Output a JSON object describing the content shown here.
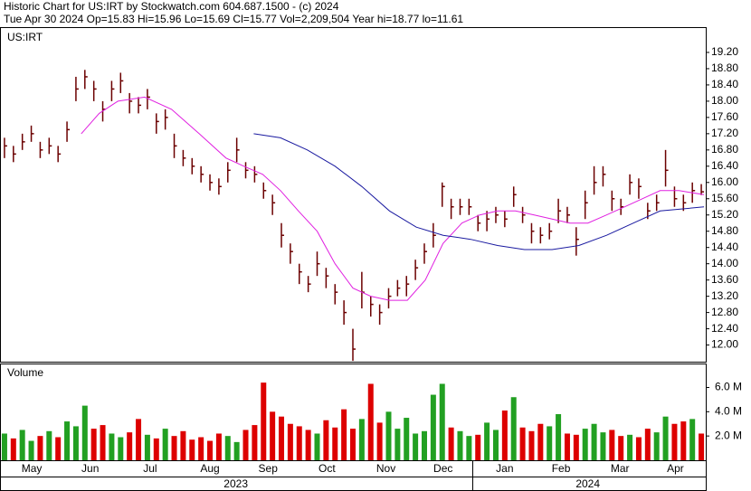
{
  "header": {
    "line1": "Historic Chart for US:IRT by Stockwatch.com 604.687.1500 - (c) 2024",
    "line2": "Tue Apr 30 2024   Op=15.83   Hi=15.96   Lo=15.69   Cl=15.77   Vol=2,209,504   Year hi=18.77   lo=11.61"
  },
  "chart_data": [
    {
      "type": "hlc",
      "label": "US:IRT",
      "color": "#6b0000",
      "high": [
        17.1,
        16.9,
        17.2,
        17.4,
        17.0,
        17.1,
        16.9,
        17.5,
        18.6,
        18.77,
        18.5,
        18.0,
        18.5,
        18.7,
        18.2,
        18.1,
        18.3,
        17.7,
        17.8,
        17.2,
        16.8,
        16.6,
        16.4,
        16.2,
        16.1,
        16.5,
        17.1,
        16.5,
        16.4,
        16.0,
        15.7,
        15.0,
        14.5,
        14.0,
        13.7,
        14.3,
        13.9,
        13.5,
        13.1,
        12.4,
        13.8,
        13.2,
        13.0,
        13.4,
        13.6,
        13.7,
        14.1,
        14.5,
        15.0,
        16.0,
        15.6,
        15.6,
        15.6,
        15.2,
        15.3,
        15.4,
        15.3,
        15.9,
        15.4,
        15.0,
        14.9,
        15.0,
        15.6,
        15.4,
        14.9,
        15.8,
        16.4,
        16.4,
        15.8,
        15.6,
        16.2,
        16.1,
        15.5,
        15.7,
        16.8,
        15.9,
        15.7,
        16.0,
        15.96
      ],
      "low": [
        16.6,
        16.5,
        16.8,
        17.0,
        16.6,
        16.7,
        16.5,
        17.0,
        18.0,
        18.3,
        18.0,
        17.5,
        18.0,
        18.2,
        17.7,
        17.7,
        17.8,
        17.2,
        17.3,
        16.6,
        16.4,
        16.2,
        16.0,
        15.8,
        15.7,
        16.0,
        16.5,
        16.1,
        16.0,
        15.6,
        15.2,
        14.4,
        14.0,
        13.5,
        13.3,
        13.7,
        13.4,
        13.0,
        12.5,
        11.61,
        12.9,
        12.7,
        12.5,
        12.9,
        13.2,
        13.2,
        13.6,
        14.0,
        14.4,
        15.4,
        15.1,
        15.2,
        15.2,
        14.8,
        14.8,
        15.0,
        14.9,
        15.4,
        15.0,
        14.5,
        14.5,
        14.6,
        15.0,
        15.0,
        14.2,
        15.1,
        15.7,
        15.9,
        15.3,
        15.2,
        15.7,
        15.6,
        15.1,
        15.3,
        15.9,
        15.4,
        15.3,
        15.5,
        15.69
      ],
      "close": [
        16.9,
        16.7,
        17.0,
        17.2,
        16.8,
        16.9,
        16.7,
        17.3,
        18.3,
        18.6,
        18.3,
        17.8,
        18.3,
        18.5,
        18.0,
        17.9,
        18.1,
        17.5,
        17.6,
        16.9,
        16.6,
        16.4,
        16.2,
        16.0,
        15.9,
        16.3,
        16.8,
        16.3,
        16.2,
        15.8,
        15.5,
        14.7,
        14.3,
        13.8,
        13.5,
        14.0,
        13.7,
        13.3,
        12.8,
        11.9,
        13.3,
        13.0,
        12.8,
        13.2,
        13.4,
        13.5,
        13.9,
        14.3,
        14.7,
        15.9,
        15.4,
        15.4,
        15.4,
        15.0,
        15.1,
        15.2,
        15.1,
        15.7,
        15.2,
        14.8,
        14.7,
        14.8,
        15.3,
        15.2,
        14.6,
        15.5,
        16.0,
        16.2,
        15.6,
        15.4,
        16.0,
        15.9,
        15.3,
        15.5,
        16.3,
        15.6,
        15.5,
        15.8,
        15.77
      ],
      "lines": [
        {
          "color": "#e020e0",
          "x": [
            8.6,
            10.6,
            12.7,
            15.7,
            18.7,
            21.8,
            24.8,
            26.8,
            28.9,
            30.9,
            32.9,
            35.0,
            37.0,
            39.0,
            41.0,
            43.1,
            45.1,
            47.1,
            49.1,
            51.2,
            53.2,
            55.2,
            57.2,
            59.3,
            61.3,
            63.3,
            65.3,
            67.4,
            69.4,
            71.4,
            73.4,
            75.5,
            78.3
          ],
          "values": [
            17.2,
            17.7,
            18.0,
            18.1,
            17.8,
            17.2,
            16.6,
            16.4,
            16.2,
            15.8,
            15.3,
            14.8,
            14.0,
            13.4,
            13.2,
            13.1,
            13.1,
            13.6,
            14.5,
            15.0,
            15.2,
            15.3,
            15.3,
            15.2,
            15.1,
            15.0,
            15.0,
            15.2,
            15.4,
            15.6,
            15.8,
            15.8,
            15.7
          ]
        },
        {
          "color": "#1a1aa0",
          "x": [
            27.9,
            30.9,
            33.9,
            37.0,
            40.0,
            43.1,
            46.1,
            49.1,
            52.2,
            55.2,
            58.2,
            61.3,
            64.3,
            67.4,
            70.4,
            73.4,
            78.3
          ],
          "values": [
            17.2,
            17.1,
            16.8,
            16.4,
            15.9,
            15.3,
            14.9,
            14.7,
            14.6,
            14.45,
            14.35,
            14.35,
            14.45,
            14.7,
            15.0,
            15.3,
            15.4
          ]
        }
      ],
      "xlim": [
        -0.5,
        78.5
      ],
      "ylim": [
        11.59,
        19.8
      ],
      "yticks": [
        {
          "value": 12,
          "label": "12.00"
        },
        {
          "value": 12.4,
          "label": "12.40"
        },
        {
          "value": 12.8,
          "label": "12.80"
        },
        {
          "value": 13.2,
          "label": "13.20"
        },
        {
          "value": 13.6,
          "label": "13.60"
        },
        {
          "value": 14,
          "label": "14.00"
        },
        {
          "value": 14.4,
          "label": "14.40"
        },
        {
          "value": 14.8,
          "label": "14.80"
        },
        {
          "value": 15.2,
          "label": "15.20"
        },
        {
          "value": 15.6,
          "label": "15.60"
        },
        {
          "value": 16,
          "label": "16.00"
        },
        {
          "value": 16.4,
          "label": "16.40"
        },
        {
          "value": 16.8,
          "label": "16.80"
        },
        {
          "value": 17.2,
          "label": "17.20"
        },
        {
          "value": 17.6,
          "label": "17.60"
        },
        {
          "value": 18,
          "label": "18.00"
        },
        {
          "value": 18.4,
          "label": "18.40"
        },
        {
          "value": 18.8,
          "label": "18.80"
        },
        {
          "value": 19.2,
          "label": "19.20"
        }
      ]
    },
    {
      "type": "bar",
      "label": "Volume",
      "up_color": "#22a022",
      "down_color": "#dd0000",
      "values": [
        2.2,
        1.8,
        2.5,
        1.6,
        2.0,
        2.4,
        1.9,
        3.2,
        2.8,
        4.5,
        2.6,
        2.9,
        2.2,
        1.9,
        2.3,
        3.4,
        2.1,
        1.8,
        2.6,
        2.0,
        2.4,
        1.7,
        1.9,
        1.6,
        2.2,
        2.0,
        1.5,
        2.5,
        2.9,
        6.4,
        4.0,
        3.6,
        3.0,
        2.8,
        2.5,
        2.2,
        3.3,
        2.7,
        4.2,
        2.6,
        3.4,
        6.3,
        3.1,
        4.0,
        2.6,
        3.5,
        2.2,
        2.4,
        5.4,
        6.3,
        2.7,
        2.4,
        2.0,
        2.1,
        3.1,
        2.5,
        4.1,
        5.2,
        2.7,
        2.4,
        3.0,
        2.8,
        3.8,
        2.2,
        2.1,
        2.6,
        3.0,
        2.3,
        2.5,
        2.0,
        2.1,
        1.9,
        2.6,
        2.3,
        3.6,
        3.0,
        3.2,
        3.4,
        2.2
      ],
      "xlim": [
        -0.5,
        78.5
      ],
      "ylim": [
        0,
        7.9
      ],
      "yticks": [
        {
          "value": 2,
          "label": "2.0 M"
        },
        {
          "value": 4,
          "label": "4.0 M"
        },
        {
          "value": 6,
          "label": "6.0 M"
        }
      ],
      "xticks": [
        {
          "value": 3.05,
          "label": "May"
        },
        {
          "value": 9.6,
          "label": "Jun"
        },
        {
          "value": 16.3,
          "label": "Jul"
        },
        {
          "value": 23.0,
          "label": "Aug"
        },
        {
          "value": 29.5,
          "label": "Sep"
        },
        {
          "value": 36.1,
          "label": "Oct"
        },
        {
          "value": 42.7,
          "label": "Nov"
        },
        {
          "value": 49.1,
          "label": "Dec"
        },
        {
          "value": 56.0,
          "label": "Jan"
        },
        {
          "value": 62.3,
          "label": "Feb"
        },
        {
          "value": 68.9,
          "label": "Mar"
        },
        {
          "value": 75.1,
          "label": "Apr"
        }
      ],
      "years": [
        {
          "value": 25.9,
          "label": "2023"
        },
        {
          "value": 65.3,
          "label": "2024"
        }
      ]
    }
  ]
}
